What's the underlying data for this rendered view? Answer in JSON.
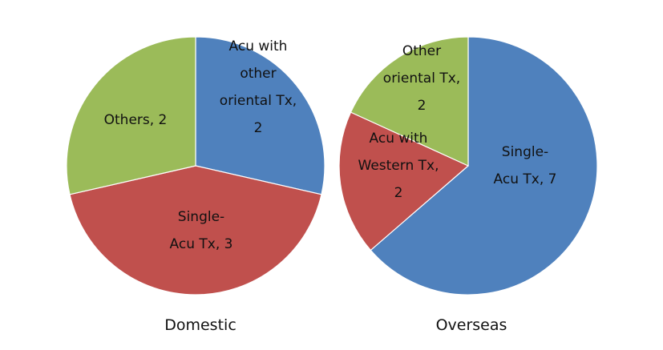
{
  "chart_data": [
    {
      "type": "pie",
      "title": "Domestic",
      "slices": [
        {
          "label": [
            "Acu with",
            "other",
            "oriental Tx,",
            "2"
          ],
          "category": "Acu with other oriental Tx",
          "value": 2,
          "color": "#4f81bd"
        },
        {
          "label": [
            "Single-",
            "Acu Tx, 3"
          ],
          "category": "Single-Acu Tx",
          "value": 3,
          "color": "#c0504d"
        },
        {
          "label": [
            "Others, 2"
          ],
          "category": "Others",
          "value": 2,
          "color": "#9bbb59"
        }
      ]
    },
    {
      "type": "pie",
      "title": "Overseas",
      "slices": [
        {
          "label": [
            "Single-",
            "Acu Tx, 7"
          ],
          "category": "Single-Acu Tx",
          "value": 7,
          "color": "#4f81bd"
        },
        {
          "label": [
            "Acu with",
            "Western Tx,",
            "2"
          ],
          "category": "Acu with Western Tx",
          "value": 2,
          "color": "#c0504d"
        },
        {
          "label": [
            "Other",
            "oriental Tx,",
            "2"
          ],
          "category": "Other oriental Tx",
          "value": 2,
          "color": "#9bbb59"
        }
      ]
    }
  ]
}
